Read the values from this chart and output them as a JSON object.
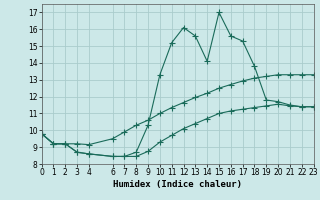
{
  "xlabel": "Humidex (Indice chaleur)",
  "bg_color": "#cce8e8",
  "grid_color": "#aacccc",
  "line_color": "#1a6b5a",
  "xlim": [
    0,
    23
  ],
  "ylim": [
    8.0,
    17.5
  ],
  "xticks": [
    0,
    1,
    2,
    3,
    4,
    6,
    7,
    8,
    9,
    10,
    11,
    12,
    13,
    14,
    15,
    16,
    17,
    18,
    19,
    20,
    21,
    22,
    23
  ],
  "yticks": [
    8,
    9,
    10,
    11,
    12,
    13,
    14,
    15,
    16,
    17
  ],
  "curve1_x": [
    0,
    1,
    2,
    3,
    4,
    6,
    7,
    8,
    9,
    10,
    11,
    12,
    13,
    14,
    15,
    16,
    17,
    18,
    19,
    20,
    21,
    22,
    23
  ],
  "curve1_y": [
    9.8,
    9.2,
    9.2,
    8.7,
    8.6,
    8.45,
    8.45,
    8.7,
    10.3,
    13.3,
    15.2,
    16.1,
    15.6,
    14.1,
    17.0,
    15.6,
    15.3,
    13.8,
    11.8,
    11.7,
    11.5,
    11.4,
    11.4
  ],
  "curve2_x": [
    0,
    1,
    2,
    3,
    4,
    6,
    7,
    8,
    9,
    10,
    11,
    12,
    13,
    14,
    15,
    16,
    17,
    18,
    19,
    20,
    21,
    22,
    23
  ],
  "curve2_y": [
    9.8,
    9.2,
    9.2,
    9.2,
    9.15,
    9.5,
    9.9,
    10.3,
    10.6,
    11.0,
    11.35,
    11.65,
    11.95,
    12.2,
    12.5,
    12.72,
    12.93,
    13.1,
    13.2,
    13.3,
    13.3,
    13.3,
    13.3
  ],
  "curve3_x": [
    0,
    1,
    2,
    3,
    4,
    6,
    7,
    8,
    9,
    10,
    11,
    12,
    13,
    14,
    15,
    16,
    17,
    18,
    19,
    20,
    21,
    22,
    23
  ],
  "curve3_y": [
    9.8,
    9.2,
    9.2,
    8.7,
    8.6,
    8.45,
    8.45,
    8.45,
    8.75,
    9.3,
    9.7,
    10.1,
    10.4,
    10.7,
    11.0,
    11.15,
    11.25,
    11.35,
    11.45,
    11.55,
    11.45,
    11.4,
    11.4
  ]
}
